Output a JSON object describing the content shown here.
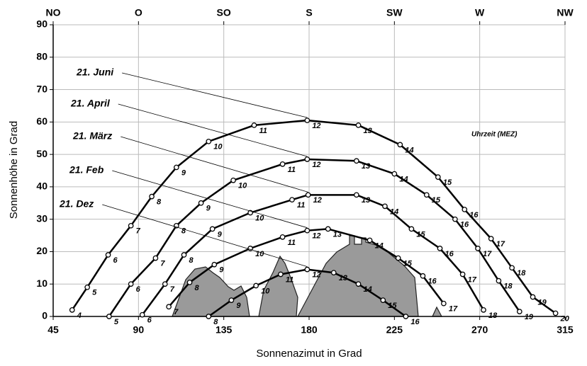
{
  "chart_data": {
    "type": "line",
    "x_label": "Sonnenazimut in Grad",
    "y_label": "Sonnenhöhe in Grad",
    "annotation": "Uhrzeit (MEZ)",
    "xlim": [
      45,
      315
    ],
    "xticks": [
      45,
      90,
      135,
      180,
      225,
      270,
      315
    ],
    "ylim": [
      0,
      90
    ],
    "yticks": [
      0,
      10,
      20,
      30,
      40,
      50,
      60,
      70,
      80,
      90
    ],
    "x2ticks": [
      {
        "value": 45,
        "label": "NO"
      },
      {
        "value": 90,
        "label": "O"
      },
      {
        "value": 135,
        "label": "SO"
      },
      {
        "value": 180,
        "label": "S"
      },
      {
        "value": 225,
        "label": "SW"
      },
      {
        "value": 270,
        "label": "W"
      },
      {
        "value": 315,
        "label": "NW"
      }
    ],
    "grid": true,
    "series": [
      {
        "name": "21. Juni",
        "color": "#000000",
        "x": [
          55,
          63,
          74,
          86,
          97,
          110,
          127,
          151,
          179,
          206,
          228,
          248,
          262,
          276,
          287,
          298,
          310
        ],
        "values": [
          2,
          9,
          19,
          28,
          37,
          46,
          54,
          59,
          60.5,
          59,
          53,
          43,
          33,
          24,
          15,
          6,
          1
        ],
        "hours": [
          4,
          5,
          6,
          7,
          8,
          9,
          10,
          11,
          12,
          13,
          14,
          15,
          16,
          17,
          18,
          19,
          20
        ]
      },
      {
        "name": "21. April",
        "color": "#000000",
        "x": [
          74.5,
          86,
          99,
          110,
          123,
          140,
          166,
          179,
          205,
          225,
          242,
          257,
          269,
          280,
          291
        ],
        "values": [
          0,
          10,
          18,
          28,
          35,
          42,
          47,
          48.5,
          48,
          44,
          37.5,
          30,
          21,
          11,
          1.5
        ],
        "hours": [
          5,
          6,
          7,
          8,
          9,
          10,
          11,
          12,
          13,
          14,
          15,
          16,
          17,
          18,
          19
        ]
      },
      {
        "name": "21. März",
        "color": "#000000",
        "x": [
          92,
          104,
          114,
          129,
          149,
          171,
          179.5,
          205,
          220,
          234,
          249,
          261,
          272
        ],
        "values": [
          0.5,
          10,
          19,
          27,
          32,
          36,
          37.5,
          37.5,
          34,
          27,
          21,
          13,
          2
        ],
        "hours": [
          6,
          7,
          8,
          9,
          10,
          11,
          12,
          13,
          14,
          15,
          16,
          17,
          18
        ]
      },
      {
        "name": "21. Feb",
        "color": "#000000",
        "x": [
          106,
          117,
          130,
          149,
          166,
          179,
          190,
          212,
          227,
          240,
          251
        ],
        "values": [
          3,
          10.5,
          16,
          21,
          24.5,
          26.5,
          27,
          23.5,
          18,
          12.5,
          4
        ],
        "hours": [
          7,
          8,
          9,
          10,
          11,
          12,
          13,
          14,
          15,
          16,
          17
        ]
      },
      {
        "name": "21. Dez",
        "color": "#000000",
        "x": [
          127,
          139,
          152,
          165,
          179,
          193,
          206,
          219,
          231
        ],
        "values": [
          0,
          5,
          9.5,
          13,
          14.5,
          13.5,
          10,
          5,
          0
        ],
        "hours": [
          8,
          9,
          10,
          11,
          12,
          13,
          14,
          15,
          16
        ]
      }
    ]
  }
}
